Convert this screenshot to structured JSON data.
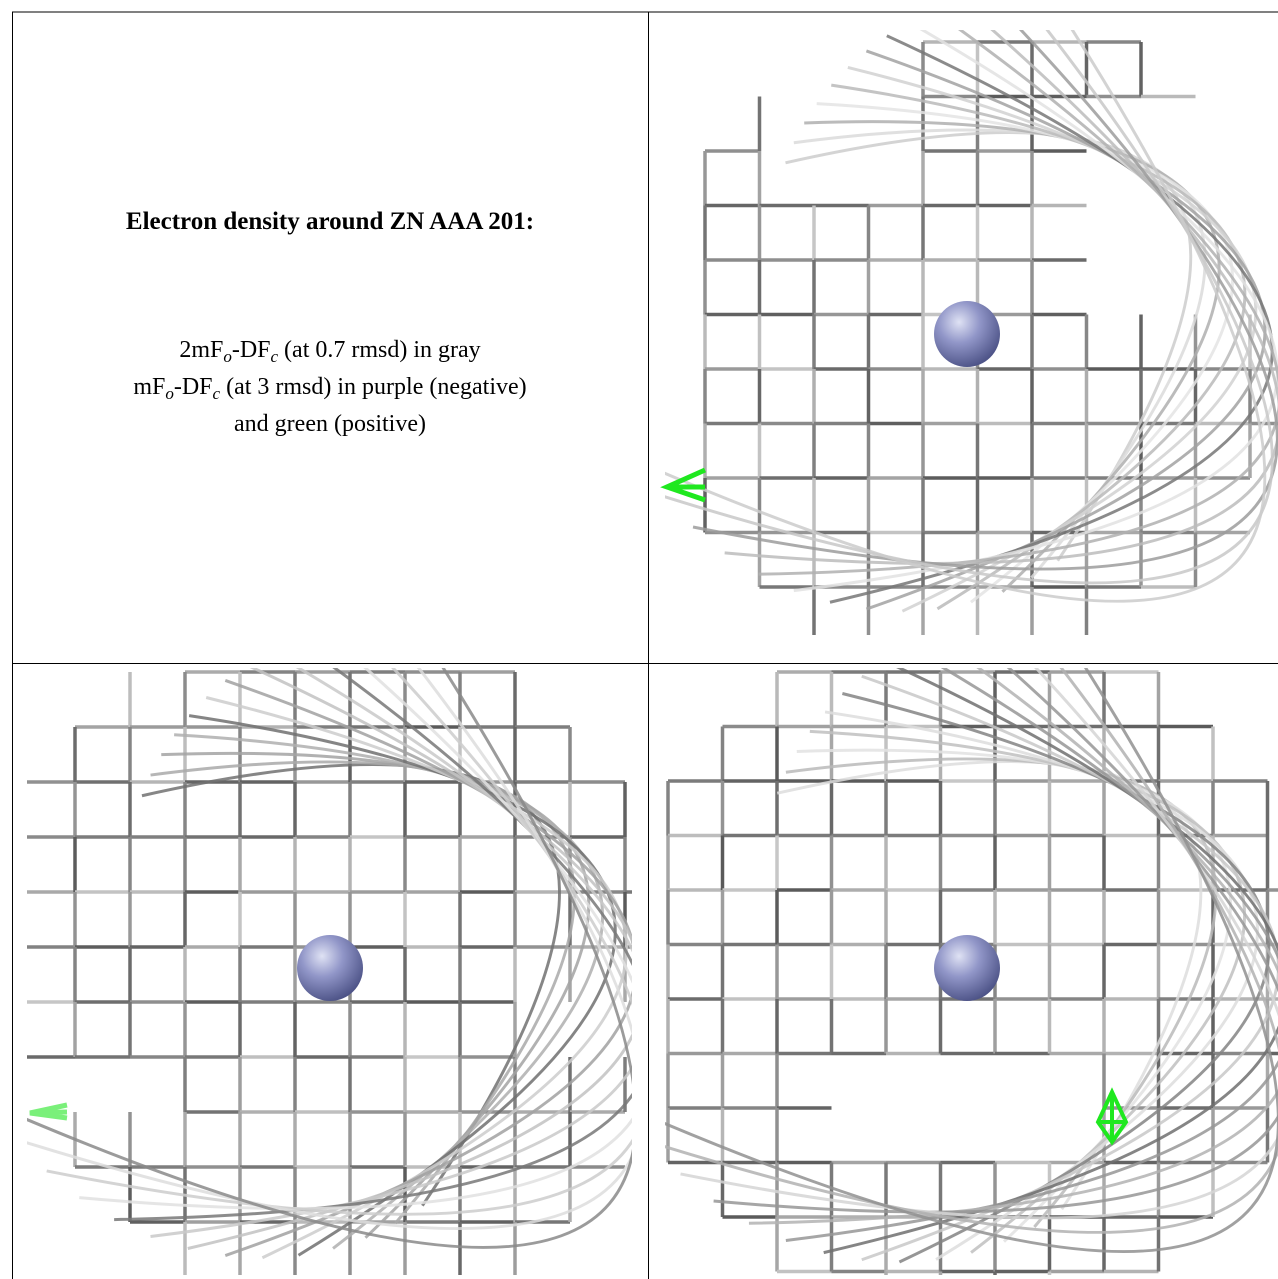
{
  "heading": "Electron density around ZN AAA 201:",
  "lines": [
    [
      "2mF",
      "o",
      "-DF",
      "c",
      " (at 0.7 rmsd) in gray"
    ],
    [
      "mF",
      "o",
      "-DF",
      "c",
      " (at 3 rmsd) in purple (negative)"
    ],
    [
      "and green (positive)"
    ]
  ]
}
